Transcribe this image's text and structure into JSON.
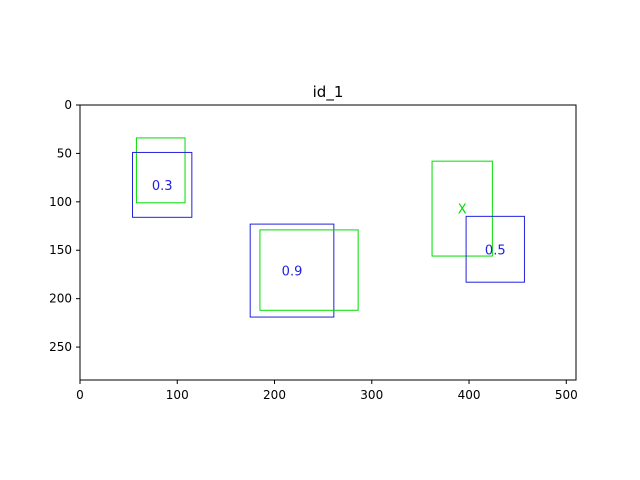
{
  "chart_data": {
    "type": "scatter",
    "title": "id_1",
    "xlabel": "",
    "ylabel": "",
    "xlim": [
      0,
      510
    ],
    "ylim": [
      284,
      0
    ],
    "y_inverted": true,
    "grid": false,
    "xticks": [
      0,
      100,
      200,
      300,
      400,
      500
    ],
    "yticks": [
      0,
      50,
      100,
      150,
      200,
      250
    ],
    "boxes": [
      {
        "group": "ground_truth",
        "color": "#00dd00",
        "label": "",
        "x0": 58,
        "y0": 34,
        "x1": 108,
        "y1": 101
      },
      {
        "group": "prediction",
        "color": "#2222dd",
        "label": "0.3",
        "x0": 54,
        "y0": 49,
        "x1": 115,
        "y1": 116
      },
      {
        "group": "prediction",
        "color": "#2222dd",
        "label": "0.9",
        "x0": 175,
        "y0": 123,
        "x1": 261,
        "y1": 219
      },
      {
        "group": "ground_truth",
        "color": "#00dd00",
        "label": "",
        "x0": 185,
        "y0": 129,
        "x1": 286,
        "y1": 212
      },
      {
        "group": "ground_truth",
        "color": "#00dd00",
        "label": "X",
        "x0": 362,
        "y0": 58,
        "x1": 424,
        "y1": 156
      },
      {
        "group": "prediction",
        "color": "#2222dd",
        "label": "0.5",
        "x0": 397,
        "y0": 115,
        "x1": 457,
        "y1": 183
      }
    ]
  }
}
